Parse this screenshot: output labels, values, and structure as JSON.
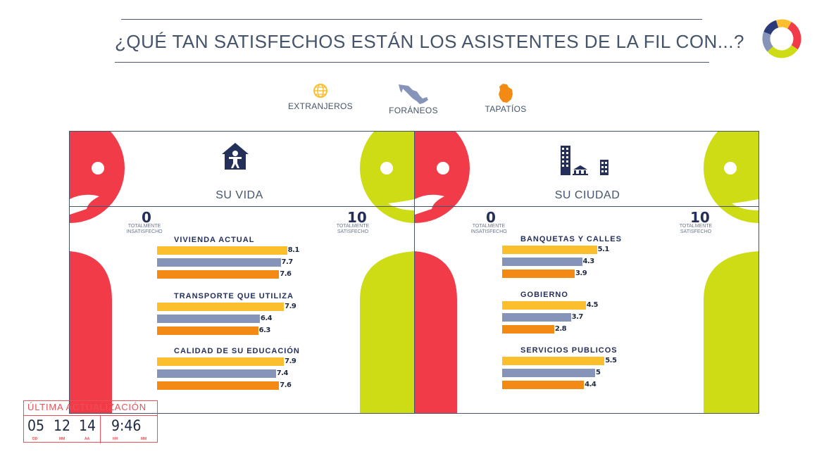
{
  "header": {
    "title": "¿QUÉ TAN SATISFECHOS ESTÁN LOS ASISTENTES DE LA FIL CON...?"
  },
  "legend": [
    {
      "label": "EXTRANJEROS",
      "color": "#fbbf2d",
      "icon": "globe-icon"
    },
    {
      "label": "FORÁNEOS",
      "color": "#8594b8",
      "icon": "mexico-map-icon"
    },
    {
      "label": "TAPATÍOS",
      "color": "#f28a14",
      "icon": "jalisco-map-icon"
    }
  ],
  "colors": {
    "extranjeros": "#fbbf2d",
    "foraneos": "#8594b8",
    "tapatios": "#f28a14",
    "sad_face": "#f23b48",
    "happy_face": "#cddc14",
    "text": "#44546a"
  },
  "scale": {
    "min": "0",
    "max": "10",
    "min_label": "TOTALMENTE INSATISFECHO",
    "max_label": "TOTALMENTE SATISFECHO"
  },
  "update": {
    "title": "ÚLTIMA ACTUALIZACIÓN",
    "dd": "05",
    "mm": "12",
    "aa": "14",
    "time": "9:46",
    "dd_label": "DD",
    "mm_label": "MM",
    "aa_label": "AA",
    "hh_label": "HH",
    "min_label": "MM"
  },
  "chart_data": [
    {
      "type": "bar",
      "title": "SU VIDA",
      "icon": "house-person-icon",
      "xlim": [
        0,
        10
      ],
      "series_names": [
        "EXTRANJEROS",
        "FORÁNEOS",
        "TAPATÍOS"
      ],
      "categories": [
        "VIVIENDA ACTUAL",
        "TRANSPORTE QUE UTILIZA",
        "CALIDAD DE SU EDUCACIÓN"
      ],
      "values": [
        [
          "8.1",
          "7.7",
          "7.6"
        ],
        [
          "7.9",
          "6.4",
          "6.3"
        ],
        [
          "7.9",
          "7.4",
          "7.6"
        ]
      ]
    },
    {
      "type": "bar",
      "title": "SU CIUDAD",
      "icon": "city-buildings-icon",
      "xlim": [
        0,
        10
      ],
      "series_names": [
        "EXTRANJEROS",
        "FORÁNEOS",
        "TAPATÍOS"
      ],
      "categories": [
        "BANQUETAS Y CALLES",
        "GOBIERNO",
        "SERVICIOS PUBLICOS"
      ],
      "values": [
        [
          "5.1",
          "4.3",
          "3.9"
        ],
        [
          "4.5",
          "3.7",
          "2.8"
        ],
        [
          "5.5",
          "5",
          "4.4"
        ]
      ]
    }
  ]
}
